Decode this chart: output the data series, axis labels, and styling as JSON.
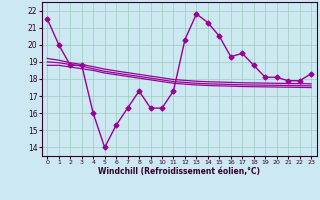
{
  "xlabel": "Windchill (Refroidissement éolien,°C)",
  "bg_color": "#cce8f0",
  "line_color": "#990099",
  "xlim": [
    -0.5,
    23.5
  ],
  "ylim": [
    13.5,
    22.5
  ],
  "yticks": [
    14,
    15,
    16,
    17,
    18,
    19,
    20,
    21,
    22
  ],
  "xticks": [
    0,
    1,
    2,
    3,
    4,
    5,
    6,
    7,
    8,
    9,
    10,
    11,
    12,
    13,
    14,
    15,
    16,
    17,
    18,
    19,
    20,
    21,
    22,
    23
  ],
  "series": [
    {
      "x": [
        0,
        1,
        2,
        3,
        4,
        5,
        6,
        7,
        8,
        9,
        10,
        11,
        12,
        13,
        14,
        15,
        16,
        17,
        18,
        19,
        20,
        21,
        22,
        23
      ],
      "y": [
        21.5,
        20.0,
        18.8,
        18.8,
        16.0,
        14.0,
        15.3,
        16.3,
        17.3,
        16.3,
        16.3,
        17.3,
        20.3,
        21.8,
        21.3,
        20.5,
        19.3,
        19.5,
        18.8,
        18.1,
        18.1,
        17.9,
        17.9,
        18.3
      ],
      "marker": "D",
      "markersize": 2.5,
      "linewidth": 1.0
    },
    {
      "x": [
        0,
        1,
        2,
        3,
        4,
        5,
        6,
        7,
        8,
        9,
        10,
        11,
        12,
        13,
        14,
        15,
        16,
        17,
        18,
        19,
        20,
        21,
        22,
        23
      ],
      "y": [
        19.0,
        18.95,
        18.85,
        18.75,
        18.6,
        18.45,
        18.35,
        18.25,
        18.15,
        18.05,
        17.95,
        17.85,
        17.8,
        17.75,
        17.72,
        17.7,
        17.68,
        17.66,
        17.65,
        17.64,
        17.63,
        17.62,
        17.61,
        17.6
      ],
      "marker": null,
      "linewidth": 0.9
    },
    {
      "x": [
        0,
        1,
        2,
        3,
        4,
        5,
        6,
        7,
        8,
        9,
        10,
        11,
        12,
        13,
        14,
        15,
        16,
        17,
        18,
        19,
        20,
        21,
        22,
        23
      ],
      "y": [
        19.2,
        19.1,
        18.95,
        18.85,
        18.72,
        18.58,
        18.47,
        18.37,
        18.27,
        18.17,
        18.07,
        17.97,
        17.92,
        17.87,
        17.84,
        17.82,
        17.8,
        17.78,
        17.77,
        17.76,
        17.75,
        17.74,
        17.73,
        17.72
      ],
      "marker": null,
      "linewidth": 0.9
    },
    {
      "x": [
        0,
        1,
        2,
        3,
        4,
        5,
        6,
        7,
        8,
        9,
        10,
        11,
        12,
        13,
        14,
        15,
        16,
        17,
        18,
        19,
        20,
        21,
        22,
        23
      ],
      "y": [
        18.8,
        18.8,
        18.7,
        18.6,
        18.5,
        18.35,
        18.25,
        18.15,
        18.05,
        17.95,
        17.85,
        17.75,
        17.7,
        17.65,
        17.62,
        17.6,
        17.58,
        17.56,
        17.55,
        17.54,
        17.53,
        17.52,
        17.51,
        17.5
      ],
      "marker": null,
      "linewidth": 0.9
    }
  ]
}
